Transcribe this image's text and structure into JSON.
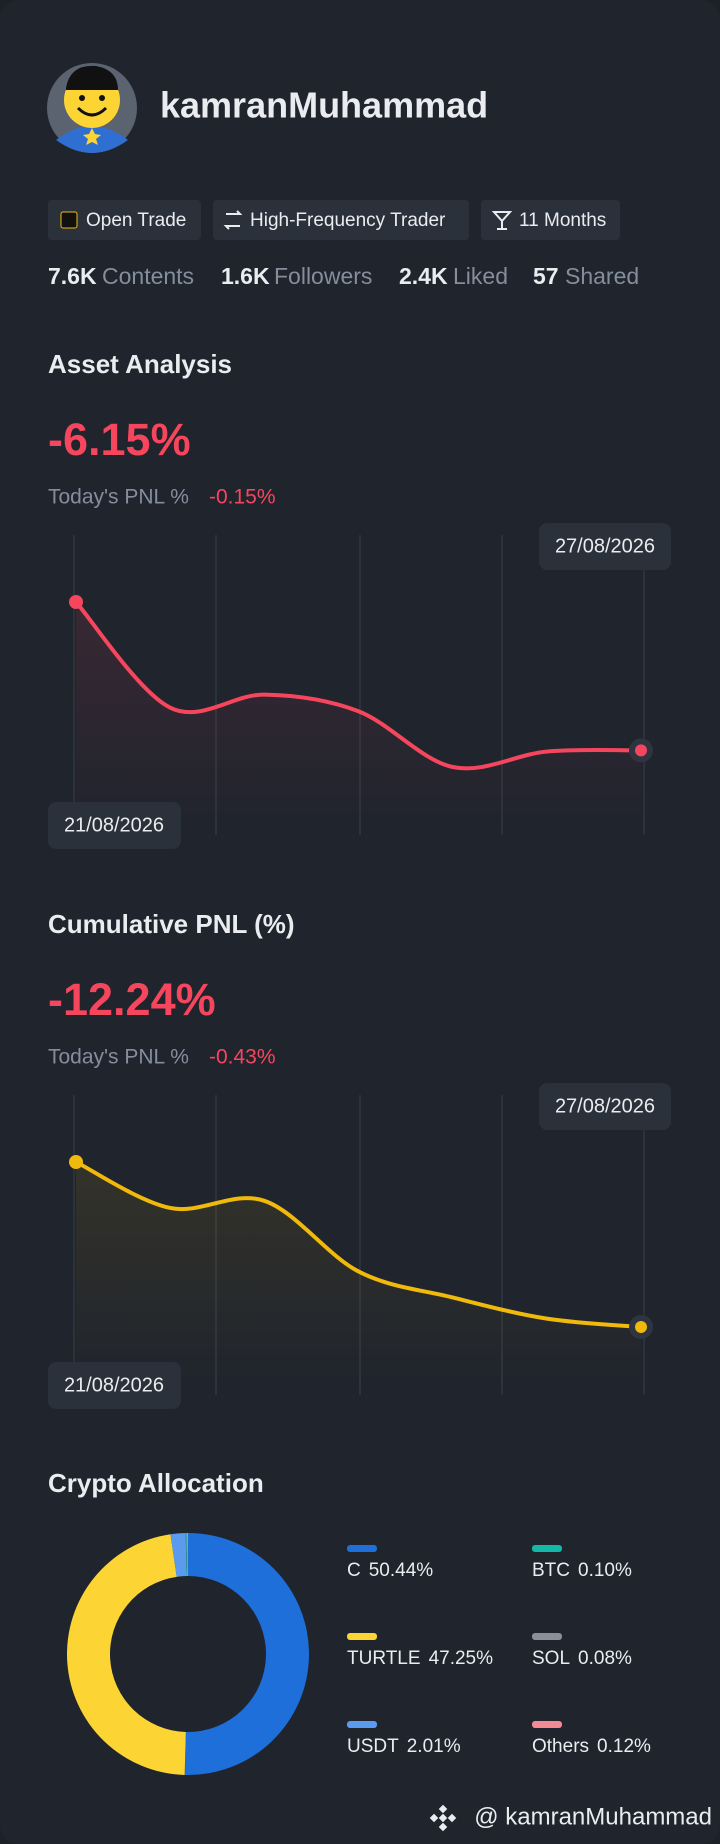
{
  "profile": {
    "username": "kamranMuhammad",
    "tags": [
      "Open Trade",
      "High-Frequency Trader",
      "11 Months"
    ],
    "stats": [
      {
        "value": "7.6K",
        "label": "Contents"
      },
      {
        "value": "1.6K",
        "label": "Followers"
      },
      {
        "value": "2.4K",
        "label": "Liked"
      },
      {
        "value": "57",
        "label": "Shared"
      }
    ]
  },
  "chart_data": [
    {
      "type": "line",
      "title": "Asset Analysis",
      "headline": "-6.15%",
      "subtitle": "Today's PNL %",
      "subtitle_value": "-0.15%",
      "x": [
        "21/08/2026",
        null,
        null,
        null,
        null,
        null,
        "27/08/2026"
      ],
      "series": [
        {
          "color": "#f6465d",
          "values": [
            0,
            -4.38,
            -3.84,
            -4.53,
            -6.84,
            -6.2,
            -6.15
          ]
        }
      ]
    },
    {
      "type": "line",
      "title": "Cumulative PNL (%)",
      "headline": "-12.24%",
      "subtitle": "Today's PNL %",
      "subtitle_value": "-0.43%",
      "x": [
        "21/08/2026",
        null,
        null,
        null,
        null,
        null,
        "27/08/2026"
      ],
      "series": [
        {
          "color": "#f0b90b",
          "values": [
            0,
            -3.41,
            -2.88,
            -8.12,
            -10.05,
            -11.62,
            -12.24
          ]
        }
      ]
    },
    {
      "type": "pie",
      "title": "Crypto Allocation",
      "categories": [
        "C",
        "BTC",
        "TURTLE",
        "SOL",
        "USDT",
        "Others"
      ],
      "values": [
        50.44,
        0.1,
        47.25,
        0.08,
        2.01,
        0.12
      ],
      "value_labels": [
        "50.44%",
        "0.10%",
        "47.25%",
        "0.08%",
        "2.01%",
        "0.12%"
      ],
      "colors": [
        "#1e6fd9",
        "#14b8a6",
        "#fcd535",
        "#8a8f98",
        "#5a9bf0",
        "#f48b94"
      ]
    }
  ],
  "footer": {
    "handle": "@ kamranMuhammad"
  }
}
